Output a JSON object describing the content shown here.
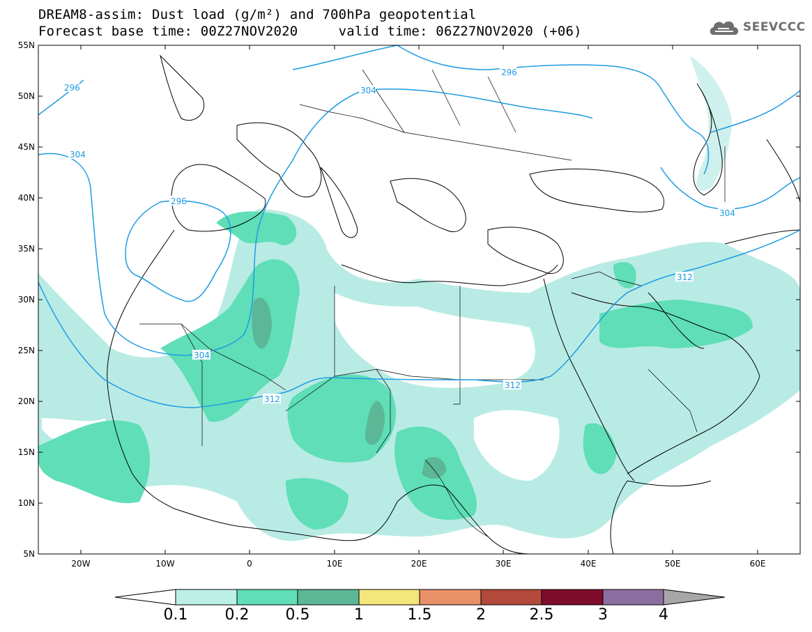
{
  "header": {
    "title_line1": "DREAM8-assim: Dust load (g/m²) and 700hPa geopotential",
    "title_line2": "Forecast base time: 00Z27NOV2020     valid time: 06Z27NOV2020 (+06)"
  },
  "logo": {
    "text": "SEEVCCC",
    "icon": "cloud-icon"
  },
  "map": {
    "lat_labels": [
      "55N",
      "50N",
      "45N",
      "40N",
      "35N",
      "30N",
      "25N",
      "20N",
      "15N",
      "10N",
      "5N"
    ],
    "lon_labels": [
      "20W",
      "10W",
      "0",
      "10E",
      "20E",
      "30E",
      "40E",
      "50E",
      "60E"
    ],
    "contour_labels": [
      "296",
      "304",
      "296",
      "304",
      "296",
      "304",
      "304",
      "312",
      "312",
      "312"
    ],
    "colors": {
      "level_0_1": "#b9ebe5",
      "level_0_2": "#5fdeb7",
      "level_0_5": "#5bb796",
      "contour": "#1c9be2",
      "coast": "#000000"
    }
  },
  "colorbar": {
    "labels": [
      "0.1",
      "0.2",
      "0.5",
      "1",
      "1.5",
      "2",
      "2.5",
      "3",
      "4"
    ],
    "colors": [
      "#bcf0e6",
      "#5fdeb7",
      "#5bb796",
      "#f3e67a",
      "#e89068",
      "#b3493a",
      "#7d0d2a",
      "#8d6ea0"
    ]
  }
}
